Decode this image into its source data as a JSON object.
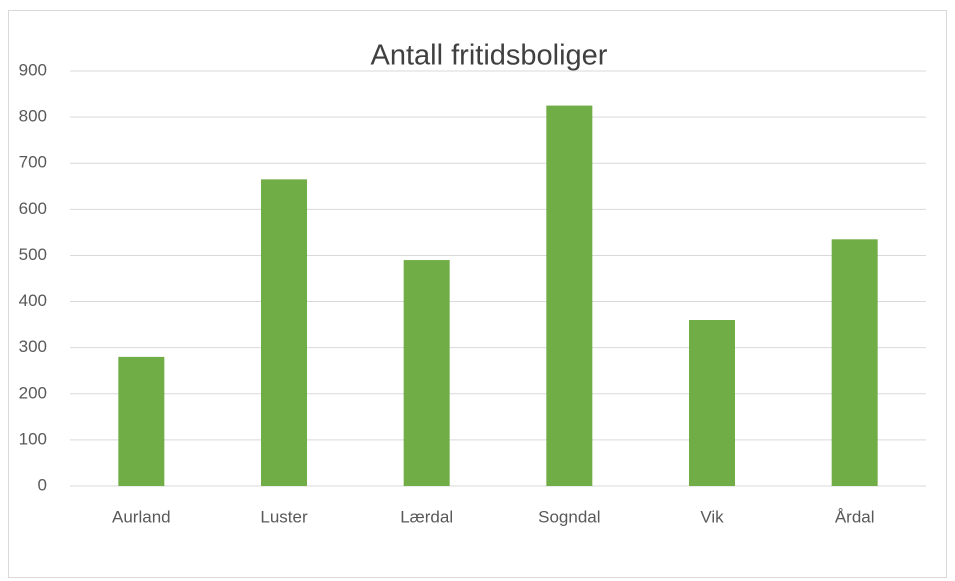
{
  "chart_data": {
    "type": "bar",
    "title": "Antall fritidsboliger",
    "categories": [
      "Aurland",
      "Luster",
      "Lærdal",
      "Sogndal",
      "Vik",
      "Årdal"
    ],
    "values": [
      280,
      665,
      490,
      825,
      360,
      535
    ],
    "color": "#70ad47",
    "ylim": [
      0,
      900
    ],
    "yticks": [
      0,
      100,
      200,
      300,
      400,
      500,
      600,
      700,
      800,
      900
    ],
    "grid": true
  }
}
